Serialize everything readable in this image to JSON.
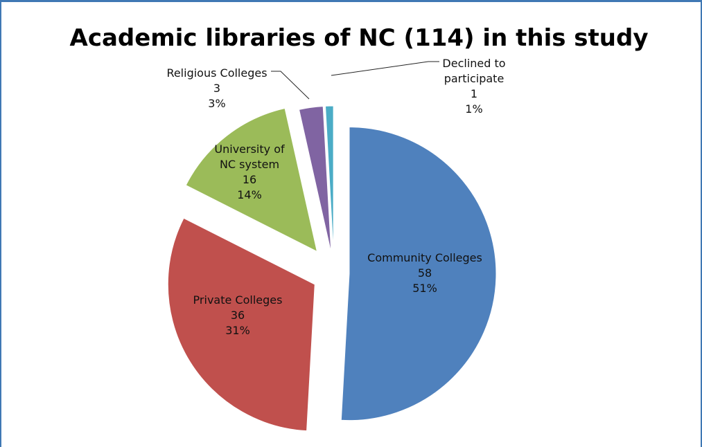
{
  "chart_data": {
    "type": "pie",
    "title": "Academic libraries of NC (114) in this study",
    "slices": [
      {
        "label_lines": [
          "Community Colleges"
        ],
        "value": 58,
        "value_text": "58",
        "percent_text": "51%",
        "color": "#4f81bd"
      },
      {
        "label_lines": [
          "Private Colleges"
        ],
        "value": 36,
        "value_text": "36",
        "percent_text": "31%",
        "color": "#c0504d"
      },
      {
        "label_lines": [
          "University of",
          "NC system"
        ],
        "value": 16,
        "value_text": "16",
        "percent_text": "14%",
        "color": "#9bbb59"
      },
      {
        "label_lines": [
          "Religious Colleges"
        ],
        "value": 3,
        "value_text": "3",
        "percent_text": "3%",
        "color": "#8064a2"
      },
      {
        "label_lines": [
          "Declined to",
          "participate"
        ],
        "value": 1,
        "value_text": "1",
        "percent_text": "1%",
        "color": "#4bacc6"
      }
    ],
    "legend": "none"
  }
}
